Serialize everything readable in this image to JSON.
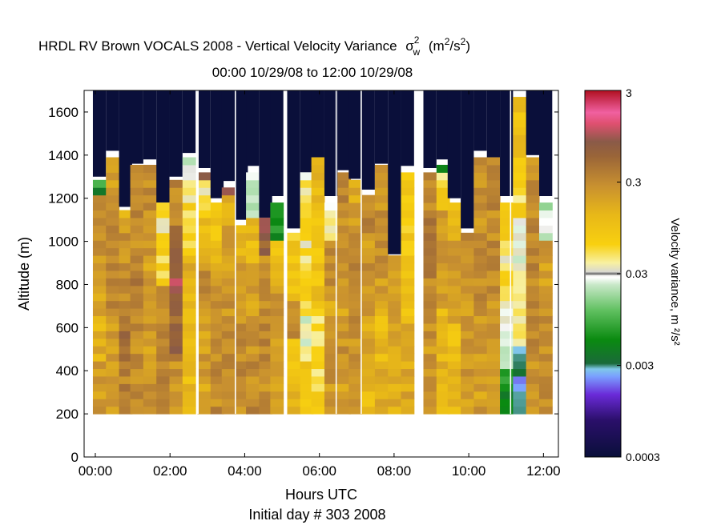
{
  "chart_data": {
    "type": "heatmap",
    "title": {
      "main": "HRDL RV Brown VOCALS 2008 - Vertical Velocity Variance",
      "sigma": "σ",
      "sigma_sub": "w",
      "sigma_sup": "2",
      "unit_open": "(m",
      "unit_sup1": "2",
      "unit_mid": "/s",
      "unit_sup2": "2",
      "unit_close": ")"
    },
    "subtitle": "00:00 10/29/08 to 12:00 10/29/08",
    "xlabel": "Hours UTC",
    "xlabel2": "Initial day # 303  2008",
    "ylabel": "Altitude (m)",
    "x_ticks": [
      "00:00",
      "02:00",
      "04:00",
      "06:00",
      "08:00",
      "10:00",
      "12:00"
    ],
    "x_tick_values": [
      0,
      2,
      4,
      6,
      8,
      10,
      12
    ],
    "y_ticks": [
      "0",
      "200",
      "400",
      "600",
      "800",
      "1000",
      "1200",
      "1400",
      "1600"
    ],
    "y_tick_values": [
      0,
      200,
      400,
      600,
      800,
      1000,
      1200,
      1400,
      1600
    ],
    "xlim": [
      -0.3,
      12.4
    ],
    "ylim": [
      0,
      1700
    ],
    "colorbar": {
      "label": "Velocity variance, m ²/s²",
      "ticks": [
        "3",
        "0.3",
        "0.03",
        "0.003",
        "0.0003"
      ],
      "tick_values": [
        3,
        0.3,
        0.03,
        0.003,
        0.0003
      ],
      "scale": "log",
      "range": [
        0.0003,
        3
      ]
    },
    "data_floor_m": 200,
    "gaps_hours": [
      2.75,
      3.75,
      5.12,
      6.45,
      7.12,
      8.75,
      11.12
    ],
    "columns": [
      {
        "t": 0.1,
        "top": 1300,
        "base": [
          0.22,
          0.15,
          0.2,
          0.25,
          0.3
        ],
        "cap": [
          0.01,
          0.004
        ]
      },
      {
        "t": 0.45,
        "top": 1420,
        "base": [
          0.25,
          0.2,
          0.3,
          0.28,
          0.22
        ]
      },
      {
        "t": 0.8,
        "top": 1160,
        "base": [
          0.35,
          0.5,
          0.3,
          0.28,
          0.25
        ],
        "cap": [
          0.12
        ]
      },
      {
        "t": 1.1,
        "top": 1360,
        "base": [
          0.28,
          0.3,
          0.35,
          0.3,
          0.25
        ]
      },
      {
        "t": 1.45,
        "top": 1380,
        "base": [
          0.25,
          0.22,
          0.2,
          0.28,
          0.3
        ]
      },
      {
        "t": 1.8,
        "top": 1180,
        "base": [
          0.3,
          0.32,
          0.28,
          0.06,
          0.05
        ]
      },
      {
        "t": 2.15,
        "top": 1300,
        "base": [
          0.25,
          0.6,
          0.9,
          0.7,
          0.3
        ]
      },
      {
        "t": 2.5,
        "top": 1410,
        "base": [
          0.12,
          0.1,
          0.15,
          0.06,
          0.04
        ],
        "cap": [
          0.02,
          0.03
        ]
      },
      {
        "t": 2.9,
        "top": 1340,
        "base": [
          0.2,
          0.22,
          0.28,
          0.12,
          0.05
        ],
        "cap": [
          0.8
        ]
      },
      {
        "t": 3.25,
        "top": 1200,
        "base": [
          0.3,
          0.28,
          0.32,
          0.15,
          0.1
        ]
      },
      {
        "t": 3.55,
        "top": 1280,
        "base": [
          0.22,
          0.28,
          0.25,
          0.2,
          0.18
        ],
        "cap": [
          0.9
        ]
      },
      {
        "t": 3.9,
        "top": 1100,
        "base": [
          0.25,
          0.3,
          0.28,
          0.2,
          0.15
        ]
      },
      {
        "t": 4.2,
        "top": 1350,
        "base": [
          0.3,
          0.25,
          0.2,
          0.12,
          0.02
        ]
      },
      {
        "t": 4.55,
        "top": 1110,
        "base": [
          0.28,
          0.3,
          0.32,
          0.25,
          0.7
        ]
      },
      {
        "t": 4.85,
        "top": 1210,
        "base": [
          0.2,
          0.18,
          0.22,
          0.1,
          0.006
        ]
      },
      {
        "t": 5.3,
        "top": 1060,
        "base": [
          0.12,
          0.08,
          0.3,
          0.1,
          0.08
        ]
      },
      {
        "t": 5.65,
        "top": 1320,
        "base": [
          0.08,
          0.03,
          0.06,
          0.05,
          0.04
        ]
      },
      {
        "t": 5.95,
        "top": 1390,
        "base": [
          0.06,
          0.05,
          0.1,
          0.08,
          0.12
        ]
      },
      {
        "t": 6.3,
        "top": 1210,
        "base": [
          0.25,
          0.22,
          0.2,
          0.3,
          0.04
        ]
      },
      {
        "t": 6.65,
        "top": 1330,
        "base": [
          0.2,
          0.25,
          0.22,
          0.28,
          0.3
        ]
      },
      {
        "t": 6.95,
        "top": 1290,
        "base": [
          0.22,
          0.28,
          0.25,
          0.3,
          0.2
        ]
      },
      {
        "t": 7.3,
        "top": 1240,
        "base": [
          0.12,
          0.2,
          0.22,
          0.25,
          0.3
        ]
      },
      {
        "t": 7.65,
        "top": 1360,
        "base": [
          0.18,
          0.12,
          0.22,
          0.25,
          0.2
        ]
      },
      {
        "t": 8.0,
        "top": 940,
        "base": [
          0.15,
          0.12,
          0.2,
          0.22,
          0.2
        ]
      },
      {
        "t": 8.35,
        "top": 1350,
        "base": [
          0.18,
          0.15,
          0.1,
          0.08,
          0.07
        ]
      },
      {
        "t": 8.95,
        "top": 1340,
        "base": [
          0.22,
          0.25,
          0.35,
          0.4,
          0.3
        ]
      },
      {
        "t": 9.3,
        "top": 1380,
        "base": [
          0.15,
          0.12,
          0.2,
          0.22,
          0.08
        ],
        "cap": [
          0.005,
          0.04
        ]
      },
      {
        "t": 9.6,
        "top": 1200,
        "base": [
          0.12,
          0.1,
          0.18,
          0.22,
          0.12
        ]
      },
      {
        "t": 9.95,
        "top": 1060,
        "base": [
          0.2,
          0.22,
          0.25,
          0.22,
          0.28
        ]
      },
      {
        "t": 10.3,
        "top": 1420,
        "base": [
          0.22,
          0.25,
          0.3,
          0.28,
          0.25
        ]
      },
      {
        "t": 10.65,
        "top": 1390,
        "base": [
          0.18,
          0.22,
          0.28,
          0.3,
          0.32
        ]
      },
      {
        "t": 11.0,
        "top": 1210,
        "base": [
          0.006,
          0.02,
          0.04,
          0.05,
          0.08
        ]
      },
      {
        "t": 11.35,
        "top": 1700,
        "base": [
          0.003,
          0.04,
          0.03,
          0.06,
          0.1
        ]
      },
      {
        "t": 11.7,
        "top": 1400,
        "base": [
          0.25,
          0.28,
          0.3,
          0.32,
          0.3
        ]
      },
      {
        "t": 12.05,
        "top": 1210,
        "base": [
          0.3,
          0.28,
          0.25,
          0.22,
          0.02
        ]
      }
    ]
  }
}
